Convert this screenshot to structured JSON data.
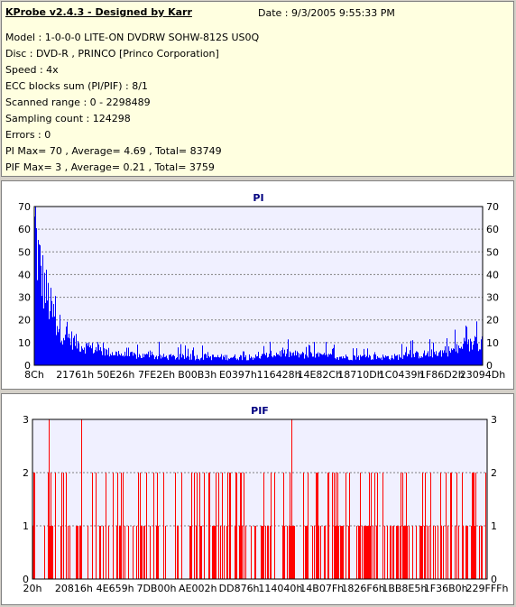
{
  "info": {
    "title": "KProbe v2.4.3 - Designed by Karr",
    "date": "Date : 9/3/2005 9:55:33 PM",
    "lines": [
      "Model : 1-0-0-0 LITE-ON DVDRW SOHW-812S  US0Q",
      "Disc : DVD-R , PRINCO [Princo Corporation]",
      "Speed : 4x",
      "ECC blocks sum (PI/PIF) : 8/1",
      "Scanned range : 0 - 2298489",
      "Sampling count : 124298",
      "Errors : 0",
      "PI Max= 70 , Average= 4.69 , Total= 83749",
      "PIF Max= 3 , Average= 0.21 , Total= 3759"
    ]
  },
  "colors": {
    "pi": "#0000ff",
    "pif": "#ff0000",
    "title": "#000080",
    "plot_bg": "#f0f0ff",
    "grid": "#808080"
  },
  "chart_data": [
    {
      "type": "bar",
      "title": "PI",
      "ylim": [
        0,
        70
      ],
      "yticks": [
        0,
        10,
        20,
        30,
        40,
        50,
        60,
        70
      ],
      "xtick_labels": [
        "8Ch",
        "21761h",
        "50E26h",
        "7FE2Eh",
        "B00B3h",
        "E0397h",
        "116428h",
        "14E82Ch",
        "18710Dh",
        "1C0439h",
        "1F86D2h",
        "23094Dh"
      ],
      "grid": true,
      "profile": {
        "x_fraction": [
          0,
          0.01,
          0.02,
          0.04,
          0.06,
          0.08,
          0.1,
          0.15,
          0.2,
          0.3,
          0.4,
          0.5,
          0.55,
          0.6,
          0.7,
          0.8,
          0.85,
          0.9,
          0.95,
          1.0
        ],
        "typical": [
          65,
          50,
          40,
          25,
          17,
          13,
          10,
          7,
          5,
          4,
          4,
          4,
          6,
          5,
          4,
          4,
          5,
          6,
          8,
          12
        ],
        "peaks": [
          70,
          62,
          55,
          40,
          28,
          20,
          15,
          12,
          12,
          10,
          9,
          10,
          12,
          11,
          10,
          10,
          12,
          14,
          17,
          21
        ]
      }
    },
    {
      "type": "bar",
      "title": "PIF",
      "ylim": [
        0,
        3
      ],
      "yticks": [
        0,
        1,
        2,
        3
      ],
      "xtick_labels": [
        "20h",
        "20816h",
        "4E659h",
        "7DB00h",
        "AE002h",
        "DD876h",
        "114040h",
        "14B07Fh",
        "1826F6h",
        "1BB8E5h",
        "1F36B0h",
        "229FFFh"
      ],
      "grid": true,
      "max_positions_fraction": [
        0.035,
        0.108,
        0.57
      ],
      "density": "dense spikes of 1 and 2 across the whole range"
    }
  ]
}
